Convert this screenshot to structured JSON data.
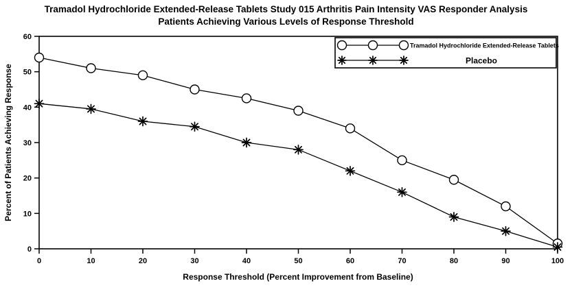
{
  "title": {
    "line1": "Tramadol Hydrochloride Extended-Release Tablets Study 015 Arthritis Pain Intensity VAS Responder Analysis",
    "line2": "Patients Achieving Various Levels of Response Threshold"
  },
  "chart_data": {
    "type": "line",
    "title": "Tramadol Hydrochloride Extended-Release Tablets Study 015 Arthritis Pain Intensity VAS Responder Analysis — Patients Achieving Various Levels of Response Threshold",
    "x": [
      0,
      10,
      20,
      30,
      40,
      50,
      60,
      70,
      80,
      90,
      100
    ],
    "series": [
      {
        "name": "Tramadol Hydrochloride Extended-Release Tablets",
        "marker": "circle",
        "color": "#000000",
        "values": [
          54,
          51,
          49,
          45,
          42.5,
          39,
          34,
          25,
          19.5,
          12,
          1.5
        ]
      },
      {
        "name": "Placebo",
        "marker": "star",
        "color": "#000000",
        "values": [
          41,
          39.5,
          36,
          34.5,
          30,
          28,
          22,
          16,
          9,
          5,
          0.5
        ]
      }
    ],
    "xlabel": "Response Threshold (Percent Improvement from Baseline)",
    "ylabel": "Percent of Patients Achieving Response",
    "xlim": [
      0,
      100
    ],
    "ylim": [
      0,
      60
    ],
    "xticks": [
      0,
      10,
      20,
      30,
      40,
      50,
      60,
      70,
      80,
      90,
      100
    ],
    "yticks": [
      0,
      10,
      20,
      30,
      40,
      50,
      60
    ],
    "grid": false,
    "legend_position": "top-right",
    "colors": {
      "line": "#000000",
      "background": "#ffffff",
      "text": "#000000"
    }
  }
}
